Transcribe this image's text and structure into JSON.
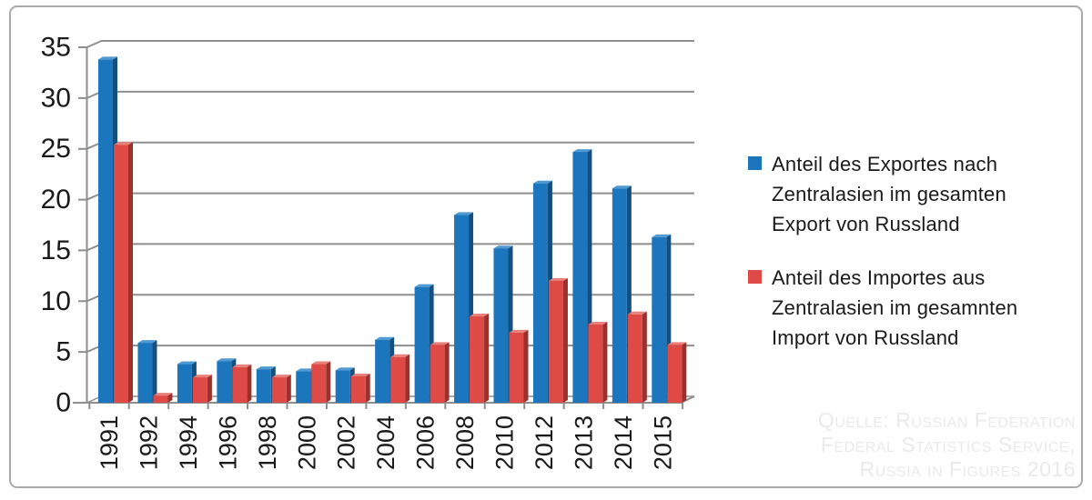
{
  "figure": {
    "border_color": "#a9a9a9",
    "background": "#ffffff"
  },
  "chart_data": {
    "type": "bar",
    "style": "3d-bevel",
    "title": "",
    "xlabel": "",
    "ylabel": "",
    "categories": [
      "1991",
      "1992",
      "1994",
      "1996",
      "1998",
      "2000",
      "2002",
      "2004",
      "2006",
      "2008",
      "2010",
      "2012",
      "2013",
      "2014",
      "2015"
    ],
    "series": [
      {
        "name": "Anteil des Exportes nach Zentralasien im gesamten Export von Russland",
        "color": "#1c76be",
        "color_light": "#4f9ad2",
        "color_dark": "#144f80",
        "values": [
          33.8,
          5.9,
          3.8,
          4.1,
          3.3,
          3.1,
          3.2,
          6.2,
          11.4,
          18.5,
          15.2,
          21.6,
          24.7,
          21.1,
          16.3
        ]
      },
      {
        "name": "Anteil des Importes aus Zentralasien im gesamnten Import von Russland",
        "color": "#de4a45",
        "color_light": "#e9807a",
        "color_dark": "#9b302c",
        "values": [
          25.4,
          0.7,
          2.5,
          3.5,
          2.5,
          3.8,
          2.6,
          4.5,
          5.7,
          8.5,
          6.9,
          12.0,
          7.7,
          8.7,
          5.7
        ]
      }
    ],
    "ylim": [
      0,
      35
    ],
    "yticks": [
      0,
      5,
      10,
      15,
      20,
      25,
      30,
      35
    ],
    "grid": true,
    "grid_color": "#8e8e8e",
    "axis_color": "#8e8e8e",
    "label_color": "#1a1a1a",
    "legend_position": "right"
  },
  "legend": {
    "items": [
      {
        "swatch_color": "#1c76be",
        "label": "Anteil des Exportes nach\nZentralasien im gesamten\nExport von Russland"
      },
      {
        "swatch_color": "#de4a45",
        "label": "Anteil des Importes aus\nZentralasien im gesamnten\nImport von Russland"
      }
    ]
  },
  "watermark": {
    "text": "Quelle: Russian Federation\nFederal Statistics Service,\nRussia in Figures 2016"
  }
}
